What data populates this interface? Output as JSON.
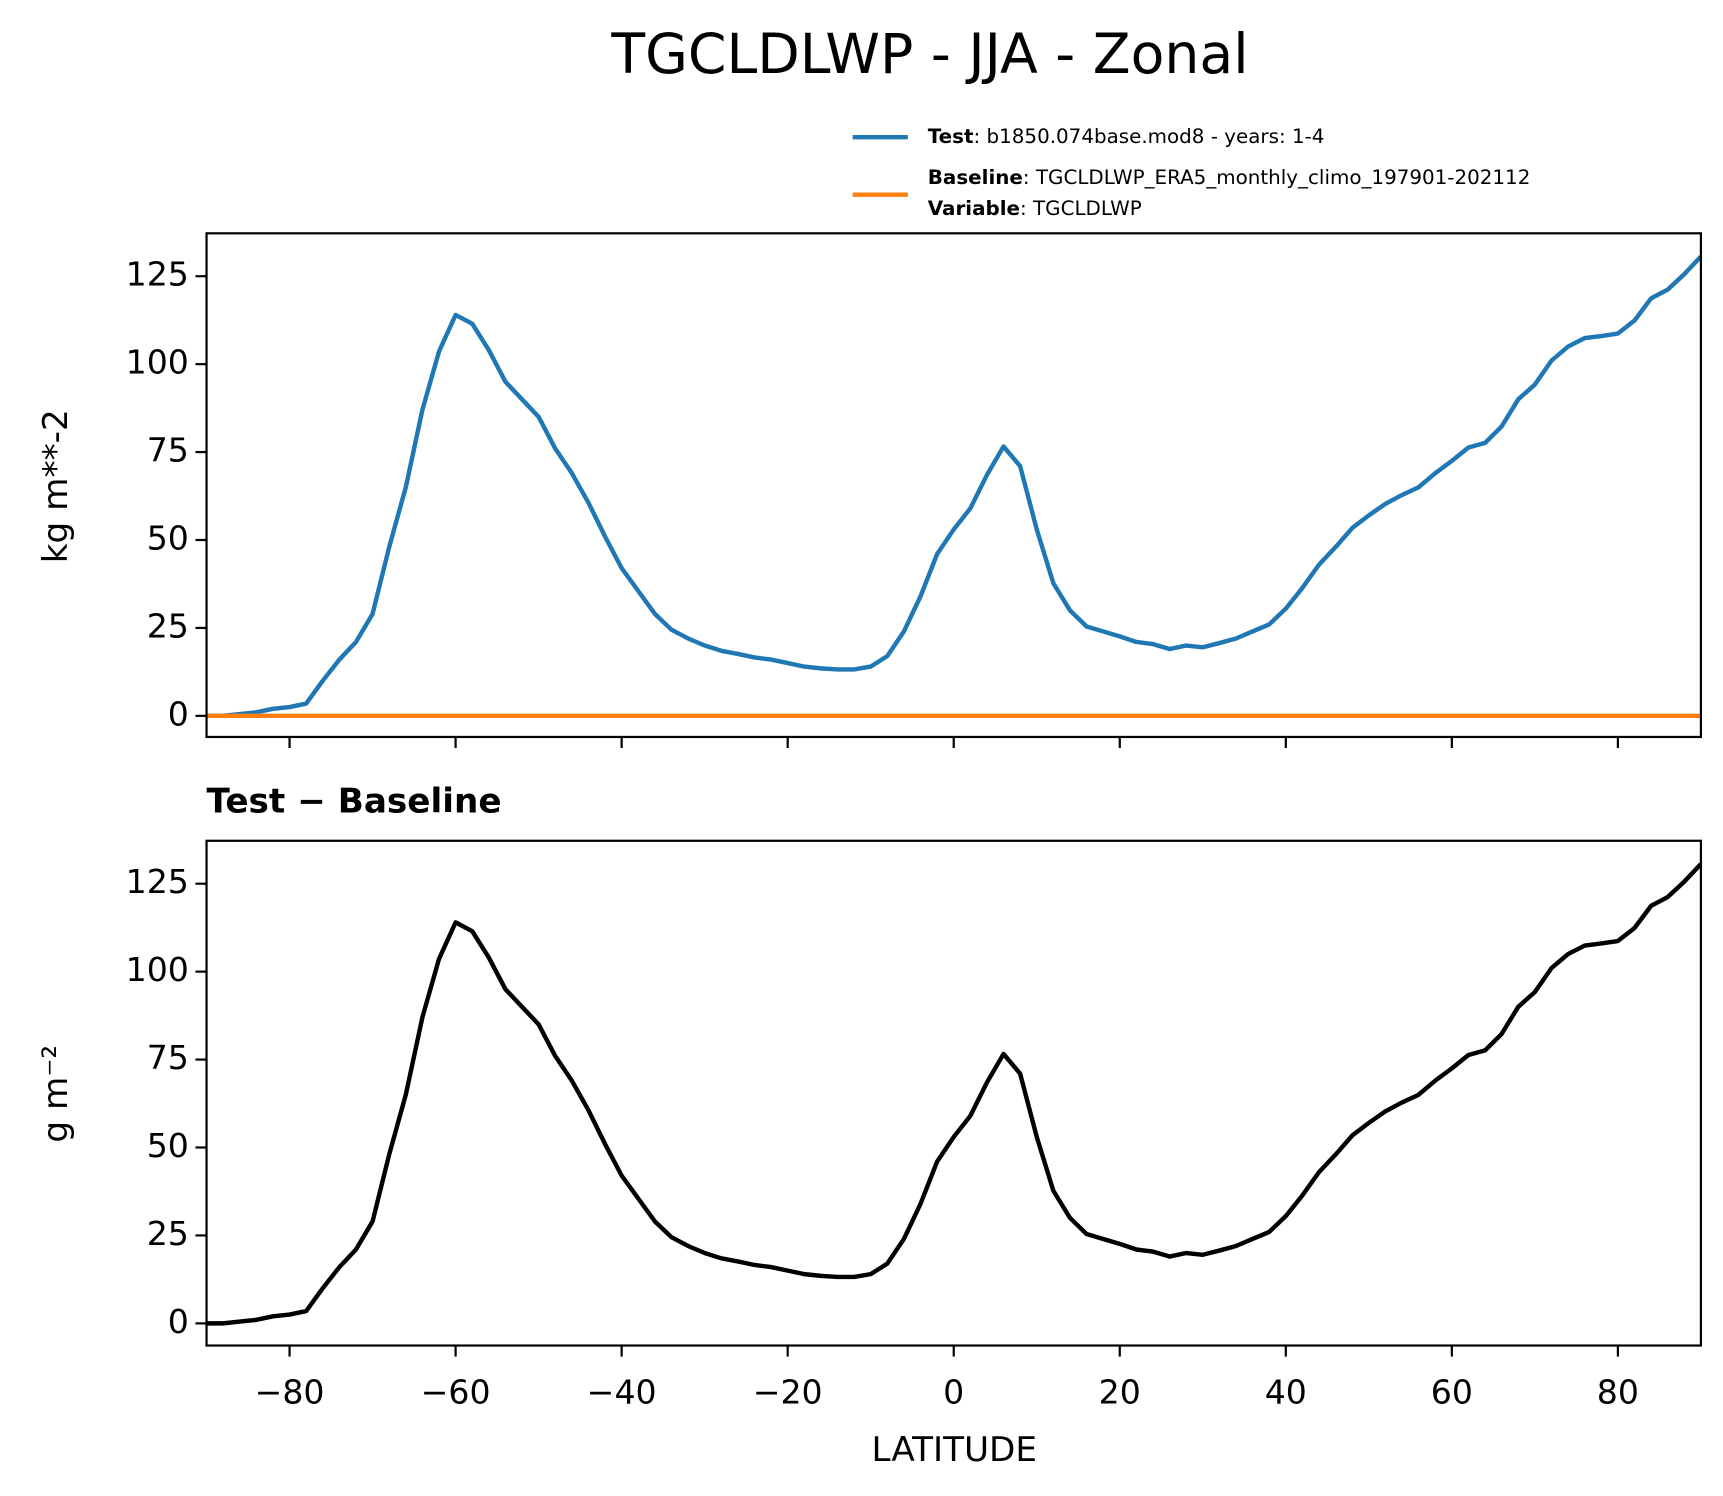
{
  "chart_data": [
    {
      "type": "line",
      "title": "TGCLDLWP - JJA - Zonal",
      "ylabel": "kg m**-2",
      "x": [
        -90,
        -88,
        -86,
        -84,
        -82,
        -80,
        -78,
        -76,
        -74,
        -72,
        -70,
        -68,
        -66,
        -64,
        -62,
        -60,
        -58,
        -56,
        -54,
        -52,
        -50,
        -48,
        -46,
        -44,
        -42,
        -40,
        -38,
        -36,
        -34,
        -32,
        -30,
        -28,
        -26,
        -24,
        -22,
        -20,
        -18,
        -16,
        -14,
        -12,
        -10,
        -8,
        -6,
        -4,
        -2,
        0,
        2,
        4,
        6,
        8,
        10,
        12,
        14,
        16,
        18,
        20,
        22,
        24,
        26,
        28,
        30,
        32,
        34,
        36,
        38,
        40,
        42,
        44,
        46,
        48,
        50,
        52,
        54,
        56,
        58,
        60,
        62,
        64,
        66,
        68,
        70,
        72,
        74,
        76,
        78,
        80,
        82,
        84,
        86,
        88,
        90
      ],
      "series": [
        {
          "name": "Test",
          "description": ": b1850.074base.mod8 - years: 1-4",
          "color": "#1f77b4",
          "values": [
            0,
            0,
            0.5,
            1,
            2,
            2.5,
            3.5,
            10,
            16,
            21,
            29,
            48,
            65,
            87,
            103.6,
            114,
            111.5,
            104,
            95,
            90,
            85,
            76,
            69,
            60.6,
            51,
            42,
            35.5,
            29,
            24.5,
            22,
            20,
            18.5,
            17.6,
            16.6,
            16,
            15,
            14,
            13.5,
            13.2,
            13.2,
            14,
            17,
            24,
            34,
            46,
            53,
            59,
            68.5,
            76.6,
            71,
            53,
            37.7,
            30,
            25.4,
            24,
            22.6,
            21,
            20.4,
            19,
            20,
            19.5,
            20.7,
            22,
            24,
            26,
            30.5,
            36.4,
            43,
            48,
            53.4,
            57,
            60.3,
            62.8,
            65,
            69,
            72.5,
            76.3,
            77.6,
            82.3,
            90,
            94.2,
            101,
            105,
            107.4,
            108,
            108.7,
            112.4,
            118.7,
            121.2,
            125.6,
            130.6
          ]
        },
        {
          "name": "Baseline",
          "description": ": TGCLDLWP_ERA5_monthly_climo_197901-202112",
          "color": "#ff7f0e",
          "values": [
            0,
            0,
            0,
            0,
            0,
            0,
            0,
            0,
            0,
            0,
            0,
            0,
            0,
            0,
            0,
            0,
            0,
            0,
            0,
            0,
            0,
            0,
            0,
            0,
            0,
            0,
            0,
            0,
            0,
            0,
            0,
            0,
            0,
            0,
            0,
            0,
            0,
            0,
            0,
            0,
            0,
            0,
            0,
            0,
            0,
            0,
            0,
            0,
            0,
            0,
            0,
            0,
            0,
            0,
            0,
            0,
            0,
            0,
            0,
            0,
            0,
            0,
            0,
            0,
            0,
            0,
            0,
            0,
            0,
            0,
            0,
            0,
            0,
            0,
            0,
            0,
            0,
            0,
            0,
            0,
            0,
            0,
            0,
            0,
            0,
            0,
            0,
            0,
            0,
            0,
            0
          ]
        }
      ],
      "variable_key": "Variable",
      "variable_text": ": TGCLDLWP",
      "xlim": [
        -90,
        90
      ],
      "xticks": [
        -80,
        -60,
        -40,
        -20,
        0,
        20,
        40,
        60,
        80
      ],
      "xticklabels": false,
      "ylim": [
        -6,
        137.2
      ],
      "yticks": [
        0,
        25,
        50,
        75,
        100,
        125
      ]
    },
    {
      "type": "line",
      "subtitle": "Test − Baseline",
      "xlabel": "LATITUDE",
      "ylabel": "g m⁻²",
      "x": [
        -90,
        -88,
        -86,
        -84,
        -82,
        -80,
        -78,
        -76,
        -74,
        -72,
        -70,
        -68,
        -66,
        -64,
        -62,
        -60,
        -58,
        -56,
        -54,
        -52,
        -50,
        -48,
        -46,
        -44,
        -42,
        -40,
        -38,
        -36,
        -34,
        -32,
        -30,
        -28,
        -26,
        -24,
        -22,
        -20,
        -18,
        -16,
        -14,
        -12,
        -10,
        -8,
        -6,
        -4,
        -2,
        0,
        2,
        4,
        6,
        8,
        10,
        12,
        14,
        16,
        18,
        20,
        22,
        24,
        26,
        28,
        30,
        32,
        34,
        36,
        38,
        40,
        42,
        44,
        46,
        48,
        50,
        52,
        54,
        56,
        58,
        60,
        62,
        64,
        66,
        68,
        70,
        72,
        74,
        76,
        78,
        80,
        82,
        84,
        86,
        88,
        90
      ],
      "series": [
        {
          "color": "#000000",
          "values": [
            0,
            0,
            0.5,
            1,
            2,
            2.5,
            3.5,
            10,
            16,
            21,
            29,
            48,
            65,
            87,
            103.6,
            114,
            111.5,
            104,
            95,
            90,
            85,
            76,
            69,
            60.6,
            51,
            42,
            35.5,
            29,
            24.5,
            22,
            20,
            18.5,
            17.6,
            16.6,
            16,
            15,
            14,
            13.5,
            13.2,
            13.2,
            14,
            17,
            24,
            34,
            46,
            53,
            59,
            68.5,
            76.6,
            71,
            53,
            37.7,
            30,
            25.4,
            24,
            22.6,
            21,
            20.4,
            19,
            20,
            19.5,
            20.7,
            22,
            24,
            26,
            30.5,
            36.4,
            43,
            48,
            53.4,
            57,
            60.3,
            62.8,
            65,
            69,
            72.5,
            76.3,
            77.6,
            82.3,
            90,
            94.2,
            101,
            105,
            107.4,
            108,
            108.7,
            112.4,
            118.7,
            121.2,
            125.6,
            130.6
          ]
        }
      ],
      "xlim": [
        -90,
        90
      ],
      "xticks": [
        {
          "value": -80,
          "label": "−80"
        },
        {
          "value": -60,
          "label": "−60"
        },
        {
          "value": -40,
          "label": "−40"
        },
        {
          "value": -20,
          "label": "−20"
        },
        0,
        20,
        40,
        60,
        80
      ],
      "xticklabels": true,
      "ylim": [
        -6.3,
        137.2
      ],
      "yticks": [
        0,
        25,
        50,
        75,
        100,
        125
      ]
    }
  ]
}
